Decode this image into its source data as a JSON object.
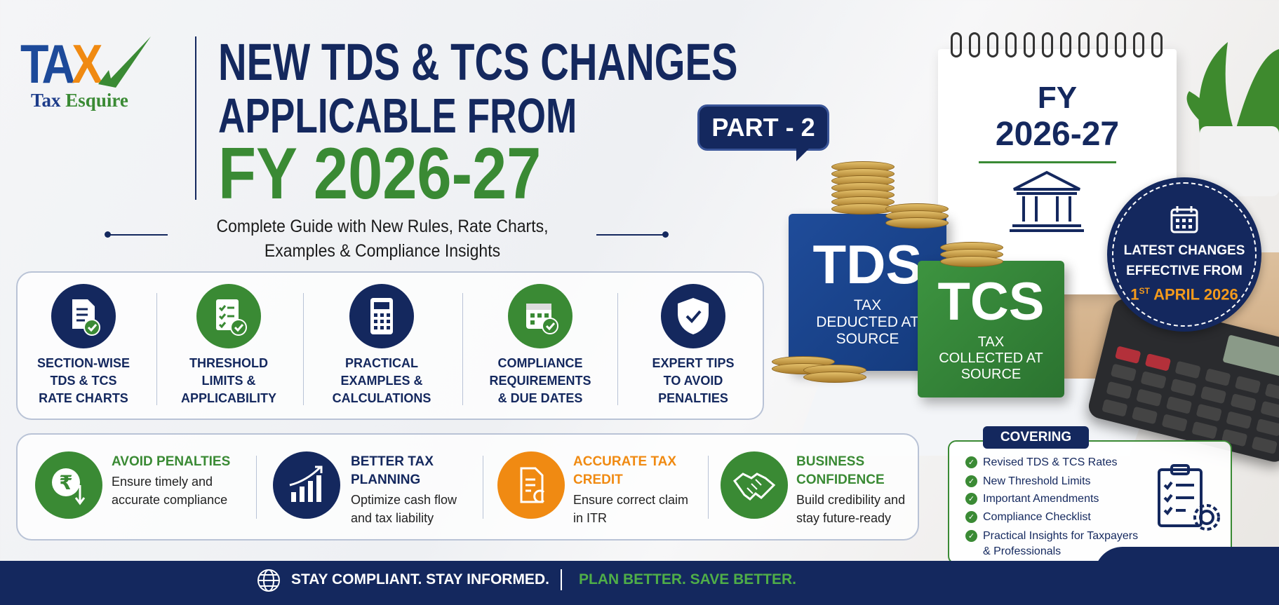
{
  "colors": {
    "navy": "#14285e",
    "green": "#3a8a34",
    "orange": "#f08a12"
  },
  "logo": {
    "mark": "TAX",
    "name_part1": "Tax",
    "name_part2": "Esquire"
  },
  "headline": {
    "line1": "NEW TDS & TCS CHANGES",
    "line2": "APPLICABLE FROM",
    "line3": "FY 2026-27"
  },
  "part_badge": "PART - 2",
  "subtitle": {
    "line1": "Complete Guide with New Rules, Rate Charts,",
    "line2": "Examples & Compliance Insights"
  },
  "features": [
    {
      "icon": "document-check-icon",
      "color": "navy",
      "lines": [
        "SECTION-WISE",
        "TDS & TCS",
        "RATE CHARTS"
      ]
    },
    {
      "icon": "checklist-icon",
      "color": "green",
      "lines": [
        "THRESHOLD",
        "LIMITS &",
        "APPLICABILITY"
      ]
    },
    {
      "icon": "calculator-icon",
      "color": "navy",
      "lines": [
        "PRACTICAL",
        "EXAMPLES &",
        "CALCULATIONS"
      ]
    },
    {
      "icon": "calendar-check-icon",
      "color": "green",
      "lines": [
        "COMPLIANCE",
        "REQUIREMENTS",
        "& DUE DATES"
      ]
    },
    {
      "icon": "shield-check-icon",
      "color": "navy",
      "lines": [
        "EXPERT TIPS",
        "TO AVOID",
        "PENALTIES"
      ]
    }
  ],
  "benefits": [
    {
      "icon": "rupee-down-icon",
      "color": "green",
      "title": "AVOID PENALTIES",
      "text": "Ensure timely and accurate compliance"
    },
    {
      "icon": "growth-chart-icon",
      "color": "navy",
      "title": "BETTER TAX PLANNING",
      "text": "Optimize cash flow and tax liability"
    },
    {
      "icon": "document-icon",
      "color": "orange",
      "title": "ACCURATE TAX CREDIT",
      "text": "Ensure correct claim in ITR"
    },
    {
      "icon": "handshake-icon",
      "color": "green",
      "title": "BUSINESS CONFIDENCE",
      "text": "Build credibility and stay future-ready"
    }
  ],
  "blocks": {
    "tds": {
      "title": "TDS",
      "sub": "TAX DEDUCTED AT SOURCE"
    },
    "tcs": {
      "title": "TCS",
      "sub": "TAX COLLECTED AT SOURCE"
    }
  },
  "calendar": {
    "line1": "FY",
    "line2": "2026-27"
  },
  "effective_badge": {
    "line1": "LATEST CHANGES",
    "line2": "EFFECTIVE FROM",
    "date_day": "1",
    "date_sup": "ST",
    "date_rest": " APRIL 2026"
  },
  "covering": {
    "title": "COVERING",
    "items": [
      "Revised TDS & TCS Rates",
      "New Threshold Limits",
      "Important Amendments",
      "Compliance Checklist",
      "Practical Insights for Taxpayers & Professionals"
    ]
  },
  "footer": {
    "left": "STAY COMPLIANT. STAY INFORMED.",
    "right": "PLAN BETTER. SAVE BETTER."
  }
}
